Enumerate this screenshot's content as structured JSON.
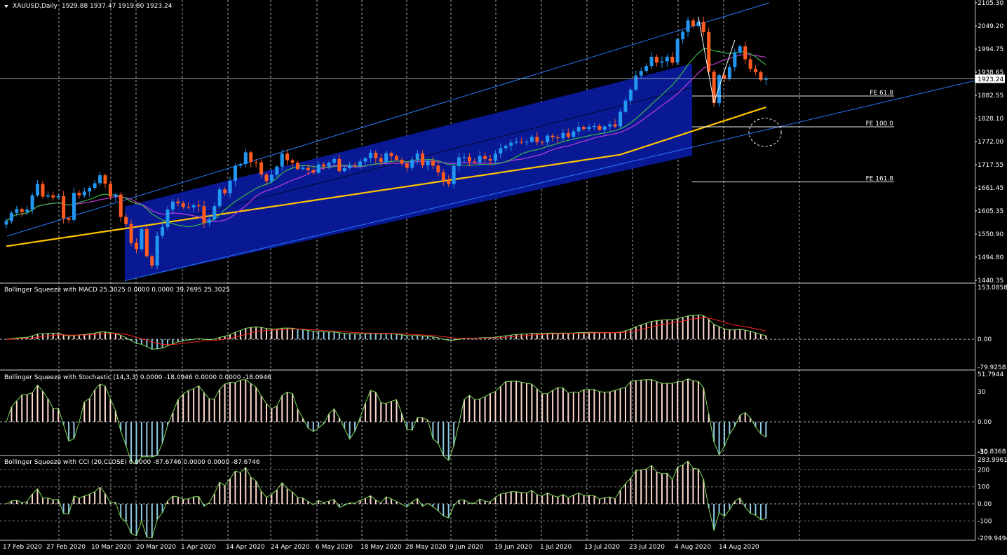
{
  "window": {
    "symbol_title": "XAUUSD,Daily",
    "ohlc": "1929.88 1937.47 1919.80 1923.24"
  },
  "colors": {
    "background": "#000000",
    "grid": "#c8c8c8",
    "bull": "#2196f3",
    "bear": "#ff5a1f",
    "channel_fill": "#0a1a9c",
    "channel_line": "#2979ff",
    "ma_slow": "#ffc400",
    "ma_mid": "#c23bd6",
    "ma_fast": "#3db54a",
    "histo_up": "#ffd8d0",
    "histo_down": "#8ecae6",
    "signal": "#ff2020",
    "osc_line": "#7ed957"
  },
  "price_panel": {
    "ylim": [
      1440.35,
      2105.3
    ],
    "yticks": [
      "2105.30",
      "2049.20",
      "1994.75",
      "1938.65",
      "1882.55",
      "1828.10",
      "1772.00",
      "1717.55",
      "1661.45",
      "1605.35",
      "1550.90",
      "1494.80",
      "1440.35"
    ],
    "last_price_label": "1923.24",
    "last_price": 1923.24,
    "fe_levels": [
      {
        "label": "FE 61.8",
        "price": 1882.0
      },
      {
        "label": "FE 100.0",
        "price": 1808.0
      },
      {
        "label": "FE 161.8",
        "price": 1676.0
      }
    ]
  },
  "macd_panel": {
    "label": "Bollinger Squeeze with MACD 25.3025 0.0000 0.0000 39.7695 25.3025",
    "yticks": [
      "153.0858",
      "0.00",
      "-79.9258"
    ],
    "ylim": [
      -79.9258,
      153.0858
    ]
  },
  "stoch_panel": {
    "label": "Bollinger Squeeze with Stochastic (14,3,3) 0.0000 -18.0946 0.0000 0.0000 -18.0946",
    "yticks": [
      "51.7944",
      "30",
      "0.00",
      "-30",
      "-30.8368"
    ],
    "ylim": [
      -30.8368,
      51.7944
    ]
  },
  "cci_panel": {
    "label": "Bollinger Squeeze with CCI (20,CLOSE) 0.0000 -87.6746 0.0000 0.0000 -87.6746",
    "yticks": [
      "283.9961",
      "200",
      "100",
      "0.00",
      "-100",
      "-209.9494"
    ],
    "ylim": [
      -209.9494,
      283.9961
    ]
  },
  "x_axis": {
    "labels": [
      "17 Feb 2020",
      "27 Feb 2020",
      "10 Mar 2020",
      "20 Mar 2020",
      "1 Apr 2020",
      "14 Apr 2020",
      "24 Apr 2020",
      "6 May 2020",
      "18 May 2020",
      "28 May 2020",
      "9 Jun 2020",
      "19 Jun 2020",
      "1 Jul 2020",
      "13 Jul 2020",
      "23 Jul 2020",
      "4 Aug 2020",
      "14 Aug 2020"
    ]
  },
  "chart_data": {
    "type": "candlestick",
    "symbol": "XAUUSD",
    "timeframe": "Daily",
    "close": [
      1582,
      1602,
      1611,
      1604,
      1610,
      1644,
      1671,
      1641,
      1644,
      1639,
      1642,
      1589,
      1585,
      1650,
      1644,
      1653,
      1662,
      1673,
      1692,
      1672,
      1641,
      1646,
      1592,
      1575,
      1530,
      1515,
      1563,
      1498,
      1476,
      1547,
      1568,
      1610,
      1629,
      1625,
      1616,
      1615,
      1620,
      1618,
      1578,
      1586,
      1618,
      1658,
      1649,
      1679,
      1715,
      1719,
      1747,
      1724,
      1723,
      1694,
      1678,
      1693,
      1713,
      1744,
      1728,
      1722,
      1707,
      1710,
      1704,
      1698,
      1718,
      1713,
      1722,
      1731,
      1702,
      1709,
      1716,
      1714,
      1725,
      1733,
      1746,
      1733,
      1724,
      1745,
      1738,
      1729,
      1720,
      1710,
      1730,
      1744,
      1716,
      1727,
      1715,
      1699,
      1680,
      1671,
      1714,
      1735,
      1736,
      1725,
      1723,
      1738,
      1731,
      1727,
      1744,
      1757,
      1763,
      1770,
      1772,
      1771,
      1772,
      1784,
      1772,
      1771,
      1787,
      1783,
      1781,
      1793,
      1784,
      1797,
      1808,
      1803,
      1808,
      1810,
      1801,
      1809,
      1814,
      1809,
      1844,
      1871,
      1897,
      1931,
      1942,
      1954,
      1976,
      1962,
      1965,
      1976,
      1962,
      2018,
      2036,
      2063,
      2050,
      2060,
      2035,
      1940,
      1865,
      1932,
      1924,
      1951,
      1986,
      2001,
      1970,
      1947,
      1939,
      1921,
      1923
    ]
  }
}
